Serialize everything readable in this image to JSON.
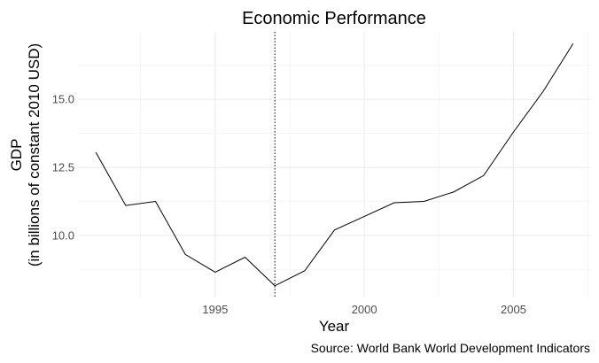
{
  "chart_data": {
    "type": "line",
    "title": "Economic Performance",
    "xlabel": "Year",
    "ylabel_lines": [
      "GDP",
      "(in billions of constant 2010 USD)"
    ],
    "caption": "Source: World Bank World Development Indicators",
    "xlim": [
      1990.4,
      2007.6
    ],
    "ylim": [
      7.72,
      17.48
    ],
    "x_ticks": [
      1995,
      2000,
      2005
    ],
    "x_minor": [
      1992.5,
      1997.5,
      2002.5,
      2007.5
    ],
    "y_ticks": [
      10.0,
      12.5,
      15.0
    ],
    "y_tick_labels": [
      "10.0",
      "12.5",
      "15.0"
    ],
    "y_minor": [
      8.75,
      11.25,
      13.75,
      16.25
    ],
    "grid": true,
    "reference_line": {
      "x": 1997,
      "style": "dotted"
    },
    "series": [
      {
        "x": [
          1991,
          1992,
          1993,
          1994,
          1995,
          1996,
          1997,
          1998,
          1999,
          2000,
          2001,
          2002,
          2003,
          2004,
          2005,
          2006,
          2007
        ],
        "values": [
          13.05,
          11.1,
          11.25,
          9.3,
          8.65,
          9.2,
          8.15,
          8.7,
          10.2,
          10.7,
          11.2,
          11.25,
          11.6,
          12.2,
          13.8,
          15.3,
          17.05
        ]
      }
    ]
  }
}
